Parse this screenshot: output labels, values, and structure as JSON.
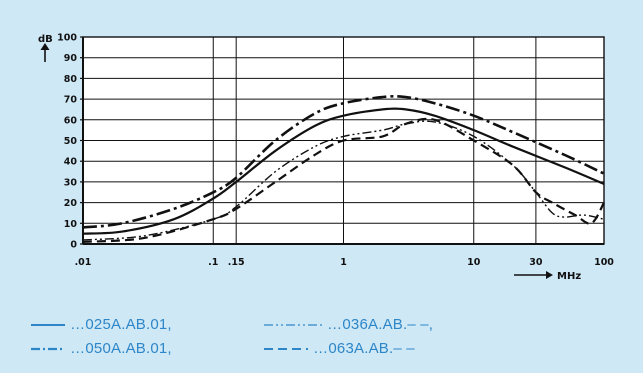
{
  "chart_data": {
    "type": "line",
    "x_scale": "log",
    "x_ticks": [
      {
        "value": 0.01,
        "label": ".01"
      },
      {
        "value": 0.1,
        "label": ".1"
      },
      {
        "value": 0.15,
        "label": ".15"
      },
      {
        "value": 1,
        "label": "1"
      },
      {
        "value": 10,
        "label": "10"
      },
      {
        "value": 30,
        "label": "30"
      },
      {
        "value": 100,
        "label": "100"
      }
    ],
    "x_gridlines": [
      0.01,
      0.1,
      0.15,
      1,
      10,
      30,
      100
    ],
    "xlim": [
      0.01,
      100
    ],
    "xlabel": "MHz",
    "y_ticks": [
      0,
      10,
      20,
      30,
      40,
      50,
      60,
      70,
      80,
      90,
      100
    ],
    "ylim": [
      0,
      100
    ],
    "ylabel": "dB",
    "grid": true,
    "series": [
      {
        "name": "…025A.AB.01,",
        "style": "solid",
        "color": "#111111",
        "points": [
          [
            0.01,
            5
          ],
          [
            0.02,
            6
          ],
          [
            0.05,
            12
          ],
          [
            0.1,
            22
          ],
          [
            0.15,
            30
          ],
          [
            0.3,
            45
          ],
          [
            0.6,
            57
          ],
          [
            1,
            62
          ],
          [
            2,
            65
          ],
          [
            3,
            65
          ],
          [
            5,
            62
          ],
          [
            10,
            55
          ],
          [
            20,
            47
          ],
          [
            50,
            37
          ],
          [
            100,
            29
          ]
        ]
      },
      {
        "name": "…036A.AB.– –,",
        "style": "dash-dot-dot",
        "color": "#111111",
        "points": [
          [
            0.01,
            2
          ],
          [
            0.03,
            4
          ],
          [
            0.1,
            12
          ],
          [
            0.15,
            18
          ],
          [
            0.3,
            35
          ],
          [
            0.6,
            47
          ],
          [
            1,
            52
          ],
          [
            2,
            55
          ],
          [
            3,
            58
          ],
          [
            5,
            59
          ],
          [
            10,
            52
          ],
          [
            20,
            38
          ],
          [
            30,
            25
          ],
          [
            40,
            15
          ],
          [
            50,
            13
          ],
          [
            70,
            14
          ],
          [
            100,
            12
          ]
        ]
      },
      {
        "name": "…050A.AB.01,",
        "style": "dash-dot",
        "color": "#111111",
        "points": [
          [
            0.01,
            8
          ],
          [
            0.02,
            10
          ],
          [
            0.05,
            17
          ],
          [
            0.1,
            25
          ],
          [
            0.15,
            32
          ],
          [
            0.3,
            50
          ],
          [
            0.6,
            63
          ],
          [
            1,
            68
          ],
          [
            2,
            71
          ],
          [
            3,
            71
          ],
          [
            5,
            68
          ],
          [
            10,
            62
          ],
          [
            20,
            54
          ],
          [
            50,
            43
          ],
          [
            100,
            34
          ]
        ]
      },
      {
        "name": "…063A.AB.– –",
        "style": "dashed",
        "color": "#111111",
        "points": [
          [
            0.01,
            1
          ],
          [
            0.03,
            3
          ],
          [
            0.1,
            12
          ],
          [
            0.15,
            17
          ],
          [
            0.3,
            30
          ],
          [
            0.6,
            43
          ],
          [
            1,
            50
          ],
          [
            2,
            52
          ],
          [
            3,
            58
          ],
          [
            5,
            60
          ],
          [
            10,
            50
          ],
          [
            20,
            38
          ],
          [
            30,
            25
          ],
          [
            40,
            20
          ],
          [
            60,
            14
          ],
          [
            80,
            10
          ],
          [
            100,
            20
          ]
        ]
      }
    ]
  },
  "legend": [
    {
      "label": "…025A.AB.01,"
    },
    {
      "label": "…036A.AB.– –,"
    },
    {
      "label": "…050A.AB.01,"
    },
    {
      "label": "…063A.AB.– –"
    }
  ],
  "colors": {
    "background": "#cfe8f6",
    "plot_background": "#ffffff",
    "ink": "#111111",
    "legend_text": "#2d86c8"
  }
}
